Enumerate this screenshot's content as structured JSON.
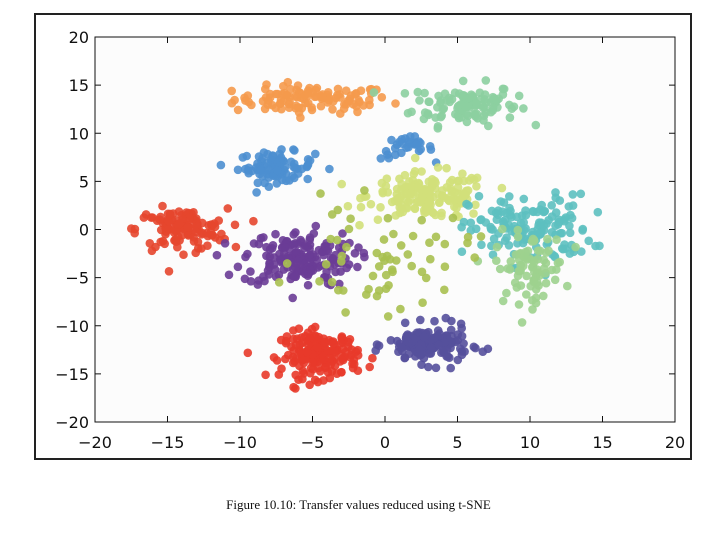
{
  "caption": "Figure 10.10: Transfer values reduced using t-SNE",
  "chart_data": {
    "type": "scatter",
    "title": "",
    "xlabel": "",
    "ylabel": "",
    "xlim": [
      -20,
      20
    ],
    "ylim": [
      -20,
      20
    ],
    "xticks": [
      "−20",
      "−15",
      "−10",
      "−5",
      "0",
      "5",
      "10",
      "15",
      "20"
    ],
    "yticks": [
      "20",
      "15",
      "10",
      "5",
      "0",
      "−5",
      "−10",
      "−15",
      "−20"
    ],
    "grid": false,
    "legend": "none",
    "clusters": [
      {
        "color": "#f59a4c",
        "center": [
          -5,
          13.5
        ],
        "spread": [
          4.5,
          1.2
        ],
        "count": 110
      },
      {
        "color": "#8ccfa0",
        "center": [
          5.5,
          13
        ],
        "spread": [
          3.0,
          1.8
        ],
        "count": 110
      },
      {
        "color": "#4d8fd0",
        "center": [
          -7.5,
          6.5
        ],
        "spread": [
          2.2,
          1.3
        ],
        "count": 90
      },
      {
        "color": "#4d8fd0",
        "center": [
          1.5,
          8.5
        ],
        "spread": [
          1.5,
          1.0
        ],
        "count": 30
      },
      {
        "color": "#d2e07a",
        "center": [
          3,
          3.5
        ],
        "spread": [
          3.5,
          2.0
        ],
        "count": 160
      },
      {
        "color": "#e5462e",
        "center": [
          -14,
          0
        ],
        "spread": [
          2.6,
          1.8
        ],
        "count": 120
      },
      {
        "color": "#6a3c96",
        "center": [
          -6,
          -3
        ],
        "spread": [
          3.2,
          2.4
        ],
        "count": 170
      },
      {
        "color": "#5dc0c0",
        "center": [
          10,
          0
        ],
        "spread": [
          3.5,
          3.0
        ],
        "count": 150
      },
      {
        "color": "#9dd18e",
        "center": [
          10,
          -4
        ],
        "spread": [
          2.0,
          3.0
        ],
        "count": 80
      },
      {
        "color": "#e83a2a",
        "center": [
          -4.5,
          -13
        ],
        "spread": [
          2.2,
          2.0
        ],
        "count": 180
      },
      {
        "color": "#55509c",
        "center": [
          3,
          -12
        ],
        "spread": [
          2.3,
          1.6
        ],
        "count": 150
      },
      {
        "color": "#a8c050",
        "center": [
          0,
          -3
        ],
        "spread": [
          5.0,
          4.5
        ],
        "count": 60
      }
    ]
  }
}
